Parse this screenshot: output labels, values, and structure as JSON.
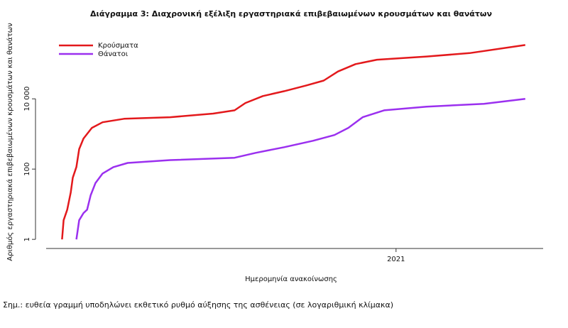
{
  "chart_data": {
    "type": "line",
    "title": "Διάγραμμα 3: Διαχρονική εξέλιξη εργαστηριακά επιβεβαιωμένων κρουσμάτων και θανάτων",
    "y_label": "Αριθμός εργαστηριακά επιβεβαιωμένων κρουσμάτων και θανάτων",
    "x_label": "Ημερομηνία ανακοίνωσης",
    "note": "Σημ.: ευθεία γραμμή υποδηλώνει εκθετικό ρυθμό αύξησης της ασθένειας (σε λογαριθμική κλίμακα)",
    "log_y": true,
    "legend": "top-left",
    "xlim": [
      2020.12,
      2021.37
    ],
    "xticks": [
      2021
    ],
    "ylim": [
      0.55,
      800000
    ],
    "yticks": [
      1,
      100,
      {
        "value": 10000,
        "label": "10 000"
      }
    ],
    "series": [
      {
        "name": "Κρούσματα",
        "color": "#e3191c",
        "x": [
          2020.16,
          2020.164,
          2020.173,
          2020.182,
          2020.187,
          2020.196,
          2020.203,
          2020.214,
          2020.235,
          2020.262,
          2020.316,
          2020.432,
          2020.54,
          2020.594,
          2020.621,
          2020.665,
          2020.719,
          2020.774,
          2020.818,
          2020.854,
          2020.898,
          2020.952,
          2021.077,
          2021.185,
          2021.325
        ],
        "values": [
          1,
          3.5,
          7,
          22,
          57,
          115,
          370,
          740,
          1490,
          2150,
          2700,
          3000,
          3800,
          4700,
          7600,
          12000,
          16500,
          24000,
          33000,
          60000,
          97000,
          130000,
          160000,
          200000,
          340000
        ]
      },
      {
        "name": "Θάνατοι",
        "color": "#9b30ef",
        "x": [
          2020.196,
          2020.203,
          2020.214,
          2020.223,
          2020.232,
          2020.244,
          2020.262,
          2020.289,
          2020.325,
          2020.432,
          2020.594,
          2020.647,
          2020.719,
          2020.791,
          2020.845,
          2020.88,
          2020.916,
          2020.97,
          2021.077,
          2021.221,
          2021.325
        ],
        "values": [
          1,
          3.5,
          5.6,
          7,
          18,
          40,
          75,
          114,
          150,
          180,
          210,
          290,
          420,
          640,
          930,
          1490,
          3000,
          4700,
          6000,
          7200,
          10000
        ]
      }
    ]
  }
}
